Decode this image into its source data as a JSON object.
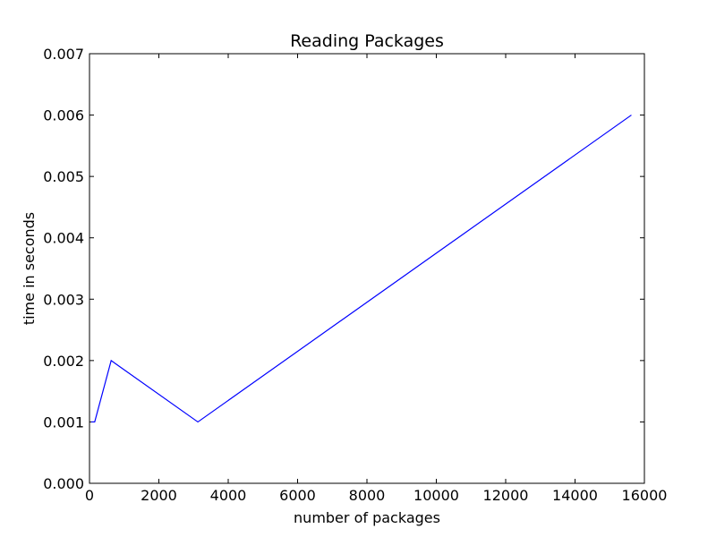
{
  "chart_data": {
    "type": "line",
    "title": "Reading Packages",
    "xlabel": "number of packages",
    "ylabel": "time in seconds",
    "xlim": [
      0,
      16000
    ],
    "ylim": [
      0,
      0.007
    ],
    "x_ticks": [
      0,
      2000,
      4000,
      6000,
      8000,
      10000,
      12000,
      14000,
      16000
    ],
    "x_tick_labels": [
      "0",
      "2000",
      "4000",
      "6000",
      "8000",
      "10000",
      "12000",
      "14000",
      "16000"
    ],
    "y_ticks": [
      0,
      0.001,
      0.002,
      0.003,
      0.004,
      0.005,
      0.006,
      0.007
    ],
    "y_tick_labels": [
      "0.000",
      "0.001",
      "0.002",
      "0.003",
      "0.004",
      "0.005",
      "0.006",
      "0.007"
    ],
    "grid": false,
    "legend": "none",
    "series": [
      {
        "color": "#0000ff",
        "x": [
          50,
          150,
          625,
          3125,
          15625
        ],
        "y": [
          0.001,
          0.001,
          0.002,
          0.001,
          0.006
        ]
      }
    ]
  }
}
